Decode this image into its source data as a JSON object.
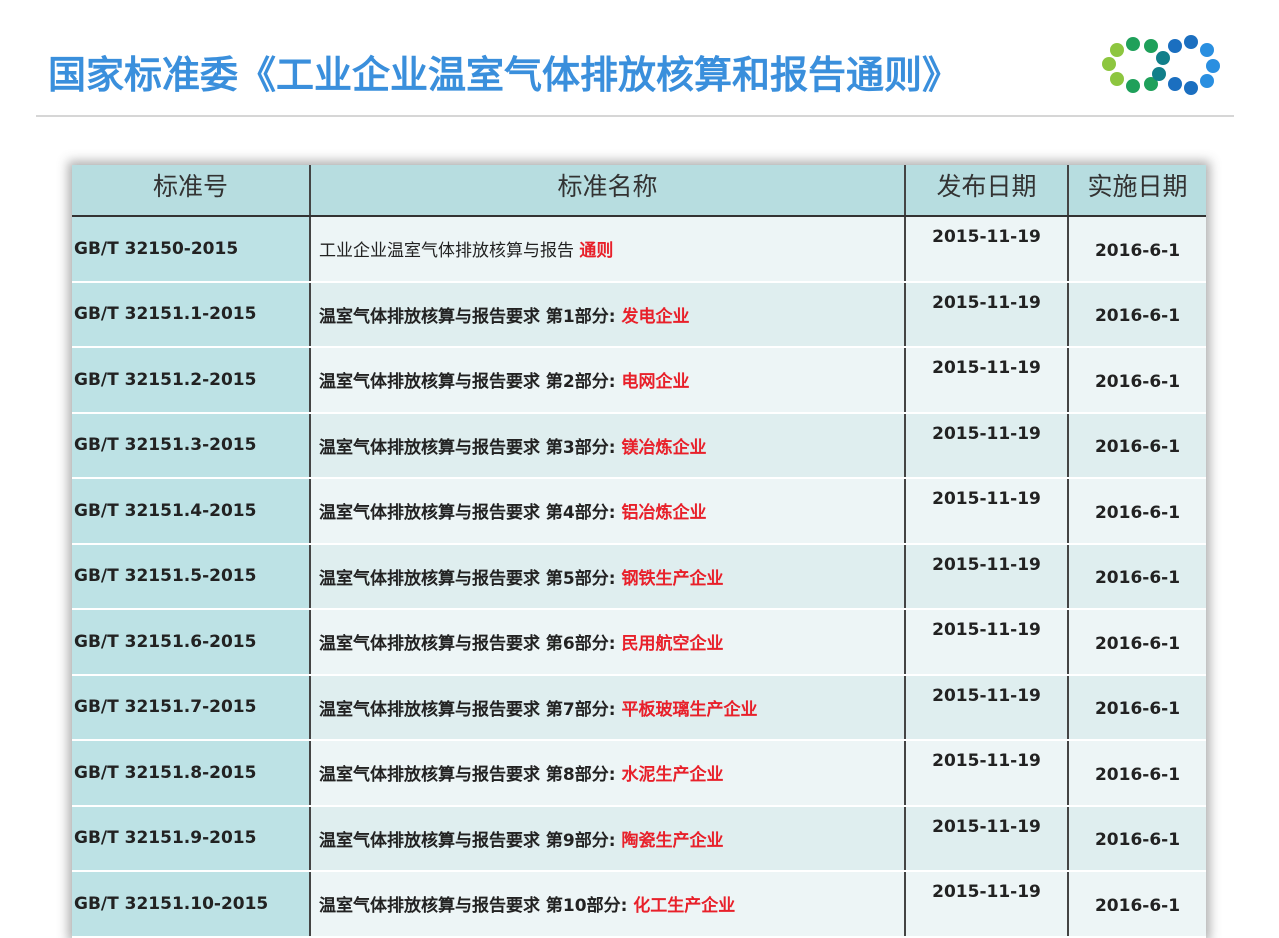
{
  "title": "国家标准委《工业企业温室气体排放核算和报告通则》",
  "logo": {
    "colors": [
      "#8dc63f",
      "#1fa05a",
      "#117f8a",
      "#1b6fc0",
      "#2a8fe0"
    ]
  },
  "table": {
    "headers": [
      "标准号",
      "标准名称",
      "发布日期",
      "实施日期"
    ],
    "rows": [
      {
        "code": "GB/T 32150-2015",
        "name": "工业企业温室气体排放核算与报告 ",
        "highlight": "通则",
        "published": "2015-11-19",
        "effective": "2016-6-1"
      },
      {
        "code": "GB/T 32151.1-2015",
        "name": "温室气体排放核算与报告要求 第1部分: ",
        "highlight": "发电企业",
        "published": "2015-11-19",
        "effective": "2016-6-1"
      },
      {
        "code": "GB/T 32151.2-2015",
        "name": "温室气体排放核算与报告要求 第2部分: ",
        "highlight": "电网企业",
        "published": "2015-11-19",
        "effective": "2016-6-1"
      },
      {
        "code": "GB/T 32151.3-2015",
        "name": "温室气体排放核算与报告要求 第3部分: ",
        "highlight": "镁冶炼企业",
        "published": "2015-11-19",
        "effective": "2016-6-1"
      },
      {
        "code": "GB/T 32151.4-2015",
        "name": "温室气体排放核算与报告要求 第4部分: ",
        "highlight": "铝冶炼企业",
        "published": "2015-11-19",
        "effective": "2016-6-1"
      },
      {
        "code": "GB/T 32151.5-2015",
        "name": "温室气体排放核算与报告要求 第5部分: ",
        "highlight": "钢铁生产企业",
        "published": "2015-11-19",
        "effective": "2016-6-1"
      },
      {
        "code": "GB/T 32151.6-2015",
        "name": "温室气体排放核算与报告要求 第6部分: ",
        "highlight": "民用航空企业",
        "published": "2015-11-19",
        "effective": "2016-6-1"
      },
      {
        "code": "GB/T 32151.7-2015",
        "name": "温室气体排放核算与报告要求 第7部分: ",
        "highlight": "平板玻璃生产企业",
        "published": "2015-11-19",
        "effective": "2016-6-1"
      },
      {
        "code": "GB/T 32151.8-2015",
        "name": "温室气体排放核算与报告要求 第8部分: ",
        "highlight": "水泥生产企业",
        "published": "2015-11-19",
        "effective": "2016-6-1"
      },
      {
        "code": "GB/T 32151.9-2015",
        "name": "温室气体排放核算与报告要求 第9部分: ",
        "highlight": "陶瓷生产企业",
        "published": "2015-11-19",
        "effective": "2016-6-1"
      },
      {
        "code": "GB/T 32151.10-2015",
        "name": "温室气体排放核算与报告要求 第10部分: ",
        "highlight": "化工生产企业",
        "published": "2015-11-19",
        "effective": "2016-6-1"
      }
    ]
  }
}
